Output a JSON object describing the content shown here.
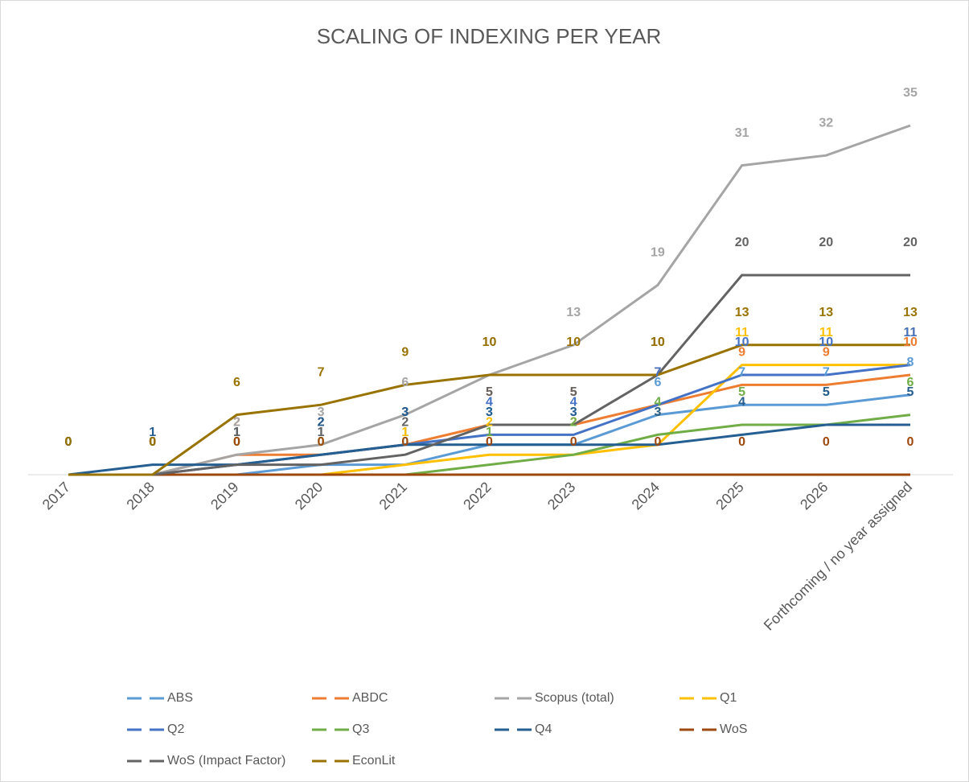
{
  "chart_data": {
    "type": "line",
    "title": "SCALING OF INDEXING PER YEAR",
    "categories": [
      "2017",
      "2018",
      "2019",
      "2020",
      "2021",
      "2022",
      "2023",
      "2024",
      "2025",
      "2026",
      "Forthcoming / no year assigned"
    ],
    "ylim": [
      0,
      40
    ],
    "series": [
      {
        "name": "ABS",
        "color": "#5b9bd5",
        "values": [
          0,
          0,
          0,
          1,
          1,
          3,
          3,
          6,
          7,
          7,
          8
        ]
      },
      {
        "name": "ABDC",
        "color": "#ed7d31",
        "values": [
          0,
          0,
          2,
          2,
          3,
          5,
          5,
          7,
          9,
          9,
          10
        ]
      },
      {
        "name": "Scopus (total)",
        "color": "#a5a5a5",
        "values": [
          0,
          0,
          2,
          3,
          6,
          10,
          13,
          19,
          31,
          32,
          35
        ]
      },
      {
        "name": "Q1",
        "color": "#ffc000",
        "values": [
          0,
          0,
          0,
          0,
          1,
          2,
          2,
          3,
          11,
          11,
          11
        ]
      },
      {
        "name": "Q2",
        "color": "#4472c4",
        "values": [
          0,
          0,
          1,
          2,
          3,
          4,
          4,
          7,
          10,
          10,
          11
        ]
      },
      {
        "name": "Q3",
        "color": "#70ad47",
        "values": [
          0,
          0,
          0,
          0,
          0,
          1,
          2,
          4,
          5,
          5,
          6
        ]
      },
      {
        "name": "Q4",
        "color": "#255e91",
        "values": [
          0,
          1,
          1,
          2,
          3,
          3,
          3,
          3,
          4,
          5,
          5
        ]
      },
      {
        "name": "WoS",
        "color": "#9e480e",
        "values": [
          0,
          0,
          0,
          0,
          0,
          0,
          0,
          0,
          0,
          0,
          0
        ]
      },
      {
        "name": "WoS (Impact Factor)",
        "color": "#636363",
        "values": [
          0,
          0,
          1,
          1,
          2,
          5,
          5,
          10,
          20,
          20,
          20
        ]
      },
      {
        "name": "EconLit",
        "color": "#997300",
        "values": [
          0,
          0,
          6,
          7,
          9,
          10,
          10,
          10,
          13,
          13,
          13
        ]
      }
    ]
  }
}
